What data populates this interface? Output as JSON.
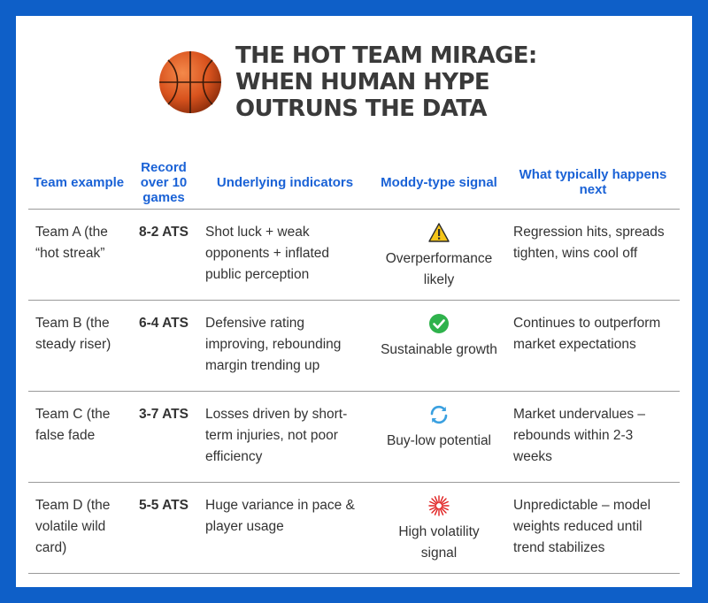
{
  "title": "THE HOT TEAM MIRAGE: WHEN HUMAN HYPE OUTRUNS THE DATA",
  "columns": [
    "Team example",
    "Record over 10 games",
    "Underlying indicators",
    "Moddy-type signal",
    "What typically happens next"
  ],
  "rows": [
    {
      "team": "Team A (the “hot streak”",
      "record": "8-2 ATS",
      "indicators": "Shot luck + weak opponents + inflated public perception",
      "signal_icon": "warning-icon",
      "signal": "Overperformance likely",
      "next": "Regression hits, spreads tighten, wins cool off"
    },
    {
      "team": "Team B (the steady riser)",
      "record": "6-4 ATS",
      "indicators": "Defensive rating improving, rebounding margin trending up",
      "signal_icon": "check-icon",
      "signal": "Sustainable growth",
      "next": "Continues to outperform market expectations"
    },
    {
      "team": "Team C (the false fade",
      "record": "3-7 ATS",
      "indicators": "Losses driven by short-term injuries, not poor efficiency",
      "signal_icon": "refresh-icon",
      "signal": "Buy-low potential",
      "next": "Market undervalues – rebounds within 2-3 weeks"
    },
    {
      "team": "Team D (the volatile wild card)",
      "record": "5-5 ATS",
      "indicators": "Huge variance in pace & player usage",
      "signal_icon": "burst-icon",
      "signal": "High volatility signal",
      "next": "Unpredictable – model weights reduced until trend stabilizes"
    }
  ],
  "colors": {
    "background": "#0e5fc8",
    "header_text": "#1a62d6",
    "title_text": "#3a3a3a",
    "warning": "#f5c518",
    "check": "#2fb24c",
    "refresh": "#3aa0e0",
    "burst": "#e02020"
  }
}
